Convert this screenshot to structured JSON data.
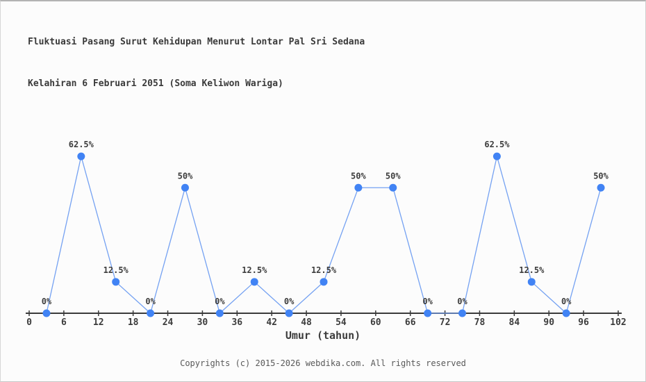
{
  "page": {
    "title_line1": "Fluktuasi Pasang Surut Kehidupan Menurut Lontar Pal Sri Sedana",
    "title_line2": "Kelahiran 6 Februari 2051 (Soma Keliwon Wariga)",
    "footer": "Copyrights (c) 2015-2026 webdika.com. All rights reserved"
  },
  "chart_data": {
    "type": "line",
    "title": "Fluktuasi Pasang Surut Kehidupan Menurut Lontar Pal Sri Sedana Kelahiran 6 Februari 2051 (Soma Keliwon Wariga)",
    "xlabel": "Umur (tahun)",
    "ylabel": "",
    "x": [
      3,
      9,
      15,
      21,
      27,
      33,
      39,
      45,
      51,
      57,
      63,
      69,
      75,
      81,
      87,
      93,
      99
    ],
    "values": [
      0,
      62.5,
      12.5,
      0,
      50,
      0,
      12.5,
      0,
      12.5,
      50,
      50,
      0,
      0,
      62.5,
      12.5,
      0,
      50
    ],
    "point_labels": [
      "0%",
      "62.5%",
      "12.5%",
      "0%",
      "50%",
      "0%",
      "12.5%",
      "0%",
      "12.5%",
      "50%",
      "50%",
      "0%",
      "0%",
      "62.5%",
      "12.5%",
      "0%",
      "50%"
    ],
    "x_ticks": [
      0,
      6,
      12,
      18,
      24,
      30,
      36,
      42,
      48,
      54,
      60,
      66,
      72,
      78,
      84,
      90,
      96,
      102
    ],
    "xlim": [
      0,
      102
    ],
    "ylim": [
      0,
      70
    ],
    "grid": false,
    "legend": "none",
    "y_axis_visible": false,
    "colors": {
      "line": "#74a1f2",
      "marker": "#4183f4",
      "axis": "#3a3a3a",
      "text": "#3c3c3c",
      "background": "#fcfcfc"
    }
  }
}
